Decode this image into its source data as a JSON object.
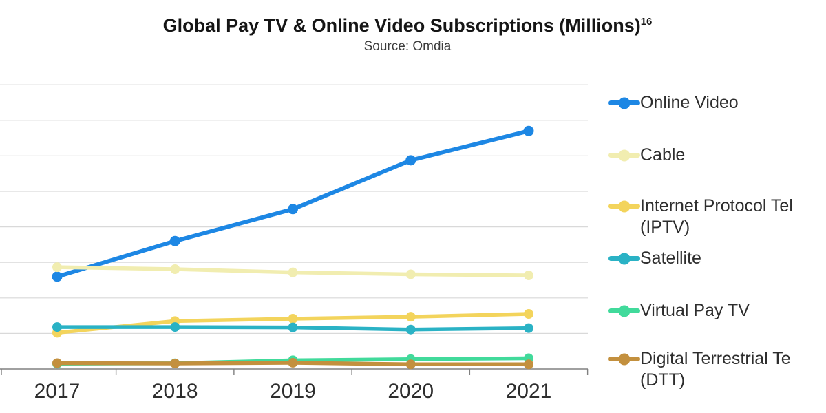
{
  "header": {
    "title": "Global Pay TV & Online Video Subscriptions (Millions)",
    "title_superscript": "16",
    "source": "Source: Omdia"
  },
  "legend": {
    "position": "right",
    "items": [
      {
        "label": "Online Video"
      },
      {
        "label": "Cable"
      },
      {
        "label": "Internet Protocol Tel",
        "label2": "(IPTV)",
        "truncated_by_crop": true
      },
      {
        "label": "Satellite"
      },
      {
        "label": "Virtual Pay TV"
      },
      {
        "label": "Digital Terrestrial Te",
        "label2": "(DTT)",
        "truncated_by_crop": true
      }
    ]
  },
  "chart_data": {
    "type": "line",
    "title": "Global Pay TV & Online Video Subscriptions (Millions)16",
    "subtitle": "Source: Omdia",
    "xlabel": "",
    "ylabel": "",
    "unit": "millions of subscriptions",
    "categories": [
      "2017",
      "2018",
      "2019",
      "2020",
      "2021"
    ],
    "grid": true,
    "legend_position": "right",
    "y_axis_labels_visible": false,
    "ylim_estimated": [
      0,
      1600
    ],
    "gridline_interval_estimated": 200,
    "values_estimated_from_gridlines": true,
    "axis_color": "#808080",
    "gridline_color": "#d9d9d9",
    "series": [
      {
        "name": "Online Video",
        "color": "#1d87e4",
        "values": [
          520,
          720,
          900,
          1175,
          1340
        ]
      },
      {
        "name": "Cable",
        "color": "#f1edb0",
        "values": [
          573,
          562,
          544,
          533,
          527
        ]
      },
      {
        "name": "Internet Protocol Tel (IPTV)",
        "color": "#f3d45c",
        "values": [
          204,
          270,
          283,
          294,
          310
        ]
      },
      {
        "name": "Satellite",
        "color": "#2ab2c5",
        "values": [
          236,
          236,
          234,
          222,
          230
        ]
      },
      {
        "name": "Virtual Pay TV",
        "color": "#41da9b",
        "values": [
          30,
          32,
          49,
          55,
          60
        ]
      },
      {
        "name": "Digital Terrestrial Te (DTT)",
        "color": "#c3903e",
        "values": [
          33,
          31,
          35,
          26,
          26
        ]
      }
    ]
  }
}
